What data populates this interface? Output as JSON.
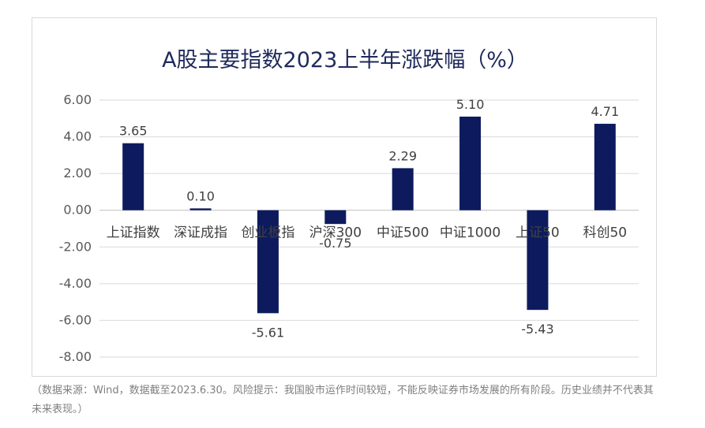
{
  "chart_data": {
    "type": "bar",
    "title": "A股主要指数2023上半年涨跌幅（%）",
    "categories": [
      "上证指数",
      "深证成指",
      "创业板指",
      "沪深300",
      "中证500",
      "中证1000",
      "上证50",
      "科创50"
    ],
    "values": [
      3.65,
      0.1,
      -5.61,
      -0.75,
      2.29,
      5.1,
      -5.43,
      4.71
    ],
    "value_labels": [
      "3.65",
      "0.10",
      "-5.61",
      "-0.75",
      "2.29",
      "5.10",
      "-5.43",
      "4.71"
    ],
    "y_ticks": [
      "6.00",
      "4.00",
      "2.00",
      "0.00",
      "-2.00",
      "-4.00",
      "-6.00",
      "-8.00"
    ],
    "ylim": [
      -8,
      6
    ],
    "grid": true,
    "bar_color": "#0d1b5e"
  },
  "footnote": "（数据来源：Wind，数据截至2023.6.30。风险提示：我国股市运作时间较短，不能反映证券市场发展的所有阶段。历史业绩并不代表其未来表现。）"
}
